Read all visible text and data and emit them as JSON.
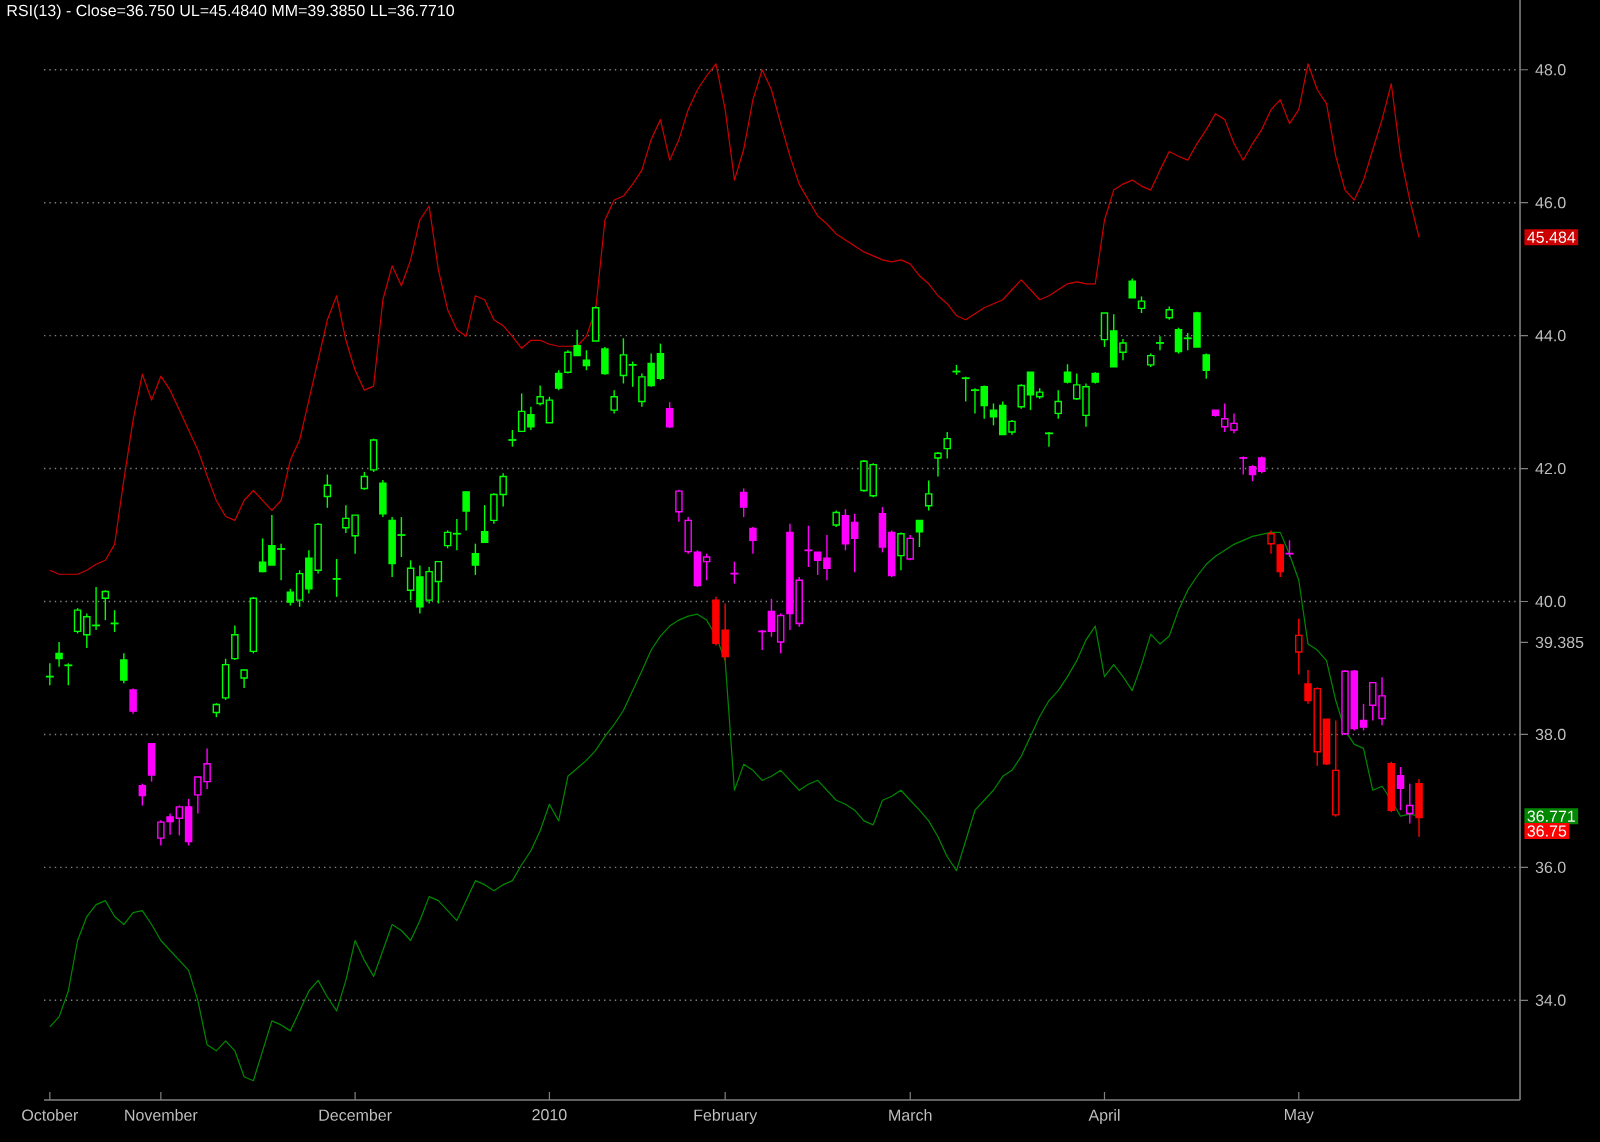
{
  "chart_data": {
    "type": "candlestick",
    "title": "RSI(13) - Close=36.750   UL=45.4840   MM=39.3850   LL=36.7710",
    "categories": [
      "October",
      null,
      null,
      null,
      null,
      null,
      null,
      null,
      null,
      null,
      null,
      null,
      "November",
      null,
      null,
      null,
      null,
      null,
      null,
      null,
      null,
      null,
      null,
      null,
      null,
      null,
      null,
      null,
      null,
      null,
      null,
      null,
      null,
      "December",
      null,
      null,
      null,
      null,
      null,
      null,
      null,
      null,
      null,
      null,
      null,
      null,
      null,
      null,
      null,
      null,
      null,
      null,
      null,
      null,
      "2010",
      null,
      null,
      null,
      null,
      null,
      null,
      null,
      null,
      null,
      null,
      null,
      null,
      null,
      null,
      null,
      null,
      null,
      null,
      "February",
      null,
      null,
      null,
      null,
      null,
      null,
      null,
      null,
      null,
      null,
      null,
      null,
      null,
      null,
      null,
      null,
      null,
      null,
      null,
      "March",
      null,
      null,
      null,
      null,
      null,
      null,
      null,
      null,
      null,
      null,
      null,
      null,
      null,
      null,
      null,
      null,
      null,
      null,
      null,
      null,
      "April",
      null,
      null,
      null,
      null,
      null,
      null,
      null,
      null,
      null,
      null,
      null,
      null,
      null,
      null,
      null,
      null,
      null,
      null,
      null,
      null,
      "May",
      null,
      null,
      null,
      null,
      null,
      null,
      null,
      null,
      null,
      null,
      null,
      null,
      null
    ],
    "ohlc": [
      [
        38.87,
        39.07,
        38.74,
        38.87
      ],
      [
        39.22,
        39.39,
        39.02,
        39.14
      ],
      [
        39.04,
        39.07,
        38.74,
        39.04
      ],
      [
        39.55,
        39.9,
        39.52,
        39.87
      ],
      [
        39.5,
        39.82,
        39.3,
        39.77
      ],
      [
        39.64,
        40.22,
        39.57,
        39.64
      ],
      [
        40.05,
        40.17,
        39.72,
        40.15
      ],
      [
        39.67,
        39.87,
        39.54,
        39.67
      ],
      [
        39.12,
        39.22,
        38.77,
        38.82
      ],
      [
        38.67,
        38.69,
        38.31,
        38.35
      ],
      [
        37.23,
        37.26,
        36.93,
        37.08
      ],
      [
        37.86,
        37.86,
        37.29,
        37.39
      ],
      [
        36.44,
        36.71,
        36.33,
        36.68
      ],
      [
        36.76,
        36.81,
        36.49,
        36.69
      ],
      [
        36.74,
        36.93,
        36.48,
        36.91
      ],
      [
        36.91,
        37.03,
        36.33,
        36.39
      ],
      [
        37.09,
        37.36,
        36.81,
        37.36
      ],
      [
        37.29,
        37.79,
        37.18,
        37.56
      ],
      [
        38.33,
        38.47,
        38.26,
        38.45
      ],
      [
        38.55,
        39.14,
        38.52,
        39.05
      ],
      [
        39.14,
        39.64,
        39.12,
        39.5
      ],
      [
        38.85,
        38.98,
        38.7,
        38.97
      ],
      [
        39.25,
        40.07,
        39.22,
        40.05
      ],
      [
        40.59,
        40.95,
        40.44,
        40.45
      ],
      [
        40.84,
        41.3,
        40.55,
        40.55
      ],
      [
        40.79,
        40.87,
        40.32,
        40.79
      ],
      [
        40.14,
        40.19,
        39.94,
        39.99
      ],
      [
        40.02,
        40.47,
        39.92,
        40.42
      ],
      [
        40.65,
        40.77,
        40.12,
        40.19
      ],
      [
        40.47,
        41.18,
        40.42,
        41.16
      ],
      [
        41.58,
        41.91,
        41.41,
        41.75
      ],
      [
        40.34,
        40.64,
        40.07,
        40.34
      ],
      [
        41.11,
        41.45,
        41.03,
        41.25
      ],
      [
        40.99,
        41.3,
        40.72,
        41.3
      ],
      [
        41.7,
        41.95,
        41.68,
        41.88
      ],
      [
        41.98,
        42.45,
        41.95,
        42.43
      ],
      [
        41.78,
        41.83,
        41.27,
        41.32
      ],
      [
        41.22,
        41.27,
        40.37,
        40.57
      ],
      [
        41.0,
        41.27,
        40.67,
        41.0
      ],
      [
        40.17,
        40.62,
        40.02,
        40.5
      ],
      [
        40.37,
        40.54,
        39.82,
        39.92
      ],
      [
        40.02,
        40.52,
        39.97,
        40.45
      ],
      [
        40.3,
        40.6,
        39.97,
        40.6
      ],
      [
        40.84,
        41.07,
        40.8,
        41.04
      ],
      [
        41.02,
        41.24,
        40.77,
        41.02
      ],
      [
        41.65,
        41.65,
        41.07,
        41.36
      ],
      [
        40.72,
        40.87,
        40.4,
        40.55
      ],
      [
        41.05,
        41.45,
        40.89,
        40.89
      ],
      [
        41.22,
        41.63,
        41.17,
        41.61
      ],
      [
        41.61,
        41.93,
        41.43,
        41.88
      ],
      [
        42.43,
        42.58,
        42.33,
        42.43
      ],
      [
        42.56,
        43.13,
        42.56,
        42.86
      ],
      [
        42.81,
        42.93,
        42.58,
        42.63
      ],
      [
        42.98,
        43.25,
        42.95,
        43.08
      ],
      [
        42.69,
        43.08,
        42.69,
        43.03
      ],
      [
        43.43,
        43.48,
        43.18,
        43.21
      ],
      [
        43.45,
        43.78,
        43.43,
        43.75
      ],
      [
        43.85,
        44.09,
        43.7,
        43.7
      ],
      [
        43.63,
        43.78,
        43.48,
        43.55
      ],
      [
        43.92,
        44.44,
        43.92,
        44.42
      ],
      [
        43.8,
        43.83,
        43.41,
        43.43
      ],
      [
        42.88,
        43.18,
        42.83,
        43.08
      ],
      [
        43.4,
        43.96,
        43.28,
        43.71
      ],
      [
        43.56,
        43.61,
        43.23,
        43.56
      ],
      [
        43.01,
        43.43,
        42.93,
        43.38
      ],
      [
        43.58,
        43.73,
        43.23,
        43.25
      ],
      [
        43.73,
        43.88,
        43.33,
        43.36
      ],
      [
        42.9,
        43.0,
        42.61,
        42.63
      ],
      [
        41.35,
        41.68,
        41.2,
        41.66
      ],
      [
        40.75,
        41.27,
        40.72,
        41.22
      ],
      [
        40.74,
        40.77,
        40.22,
        40.24
      ],
      [
        40.6,
        40.72,
        40.32,
        40.67
      ],
      [
        40.02,
        40.07,
        39.34,
        39.37
      ],
      [
        39.57,
        39.97,
        39.11,
        39.17
      ],
      [
        40.42,
        40.6,
        40.27,
        40.42
      ],
      [
        41.64,
        41.7,
        41.27,
        41.42
      ],
      [
        41.1,
        41.12,
        40.72,
        40.92
      ],
      [
        39.55,
        39.57,
        39.27,
        39.55
      ],
      [
        39.85,
        40.04,
        39.47,
        39.55
      ],
      [
        39.39,
        39.82,
        39.22,
        39.79
      ],
      [
        41.04,
        41.17,
        39.57,
        39.82
      ],
      [
        39.67,
        40.37,
        39.62,
        40.32
      ],
      [
        40.77,
        41.14,
        40.52,
        40.77
      ],
      [
        40.74,
        40.74,
        40.4,
        40.62
      ],
      [
        40.65,
        41.0,
        40.32,
        40.5
      ],
      [
        41.15,
        41.37,
        41.12,
        41.34
      ],
      [
        41.29,
        41.39,
        40.77,
        40.87
      ],
      [
        41.19,
        41.32,
        40.44,
        40.95
      ],
      [
        41.67,
        42.13,
        41.65,
        42.11
      ],
      [
        41.59,
        42.08,
        41.57,
        42.06
      ],
      [
        41.32,
        41.42,
        40.74,
        40.82
      ],
      [
        41.04,
        41.07,
        40.37,
        40.39
      ],
      [
        40.69,
        41.04,
        40.47,
        41.02
      ],
      [
        40.64,
        41.0,
        40.62,
        40.95
      ],
      [
        41.22,
        41.22,
        40.82,
        41.05
      ],
      [
        41.44,
        41.82,
        41.37,
        41.62
      ],
      [
        42.16,
        42.25,
        41.88,
        42.23
      ],
      [
        42.3,
        42.55,
        42.15,
        42.45
      ],
      [
        43.46,
        43.56,
        43.41,
        43.46
      ],
      [
        43.36,
        43.38,
        43.01,
        43.36
      ],
      [
        43.18,
        43.21,
        42.83,
        43.18
      ],
      [
        43.23,
        43.25,
        42.75,
        42.95
      ],
      [
        42.88,
        42.98,
        42.65,
        42.78
      ],
      [
        42.95,
        43.01,
        42.51,
        42.51
      ],
      [
        42.55,
        42.73,
        42.51,
        42.71
      ],
      [
        42.93,
        43.27,
        42.9,
        43.25
      ],
      [
        43.45,
        43.45,
        42.88,
        43.11
      ],
      [
        43.08,
        43.21,
        43.05,
        43.15
      ],
      [
        42.53,
        42.55,
        42.33,
        42.53
      ],
      [
        42.83,
        43.18,
        42.75,
        43.01
      ],
      [
        43.45,
        43.57,
        43.28,
        43.3
      ],
      [
        43.05,
        43.43,
        43.03,
        43.26
      ],
      [
        42.8,
        43.28,
        42.63,
        43.23
      ],
      [
        43.43,
        43.45,
        43.28,
        43.3
      ],
      [
        43.94,
        44.34,
        43.83,
        44.34
      ],
      [
        44.07,
        44.32,
        43.53,
        43.53
      ],
      [
        43.75,
        43.95,
        43.63,
        43.89
      ],
      [
        44.82,
        44.86,
        44.57,
        44.57
      ],
      [
        44.41,
        44.59,
        44.34,
        44.52
      ],
      [
        43.56,
        43.73,
        43.53,
        43.7
      ],
      [
        43.89,
        43.99,
        43.78,
        43.89
      ],
      [
        44.27,
        44.44,
        44.24,
        44.39
      ],
      [
        44.09,
        44.12,
        43.73,
        43.76
      ],
      [
        43.96,
        44.04,
        43.78,
        43.96
      ],
      [
        44.34,
        44.36,
        43.83,
        43.83
      ],
      [
        43.71,
        43.73,
        43.35,
        43.48
      ],
      [
        42.88,
        42.88,
        42.78,
        42.8
      ],
      [
        42.63,
        42.98,
        42.55,
        42.75
      ],
      [
        42.58,
        42.83,
        42.53,
        42.68
      ],
      [
        42.16,
        42.18,
        41.91,
        42.16
      ],
      [
        42.03,
        42.05,
        41.81,
        41.91
      ],
      [
        42.16,
        42.18,
        41.93,
        41.96
      ],
      [
        40.87,
        41.07,
        40.72,
        41.02
      ],
      [
        40.85,
        40.87,
        40.37,
        40.45
      ],
      [
        40.72,
        40.92,
        40.67,
        40.72
      ],
      [
        39.24,
        39.74,
        38.9,
        39.49
      ],
      [
        38.76,
        38.97,
        38.46,
        38.51
      ],
      [
        37.74,
        38.71,
        37.53,
        38.69
      ],
      [
        38.23,
        38.23,
        37.54,
        37.56
      ],
      [
        36.79,
        38.21,
        36.76,
        37.46
      ],
      [
        38.01,
        38.97,
        37.99,
        38.95
      ],
      [
        38.95,
        38.97,
        38.06,
        38.09
      ],
      [
        38.21,
        38.46,
        38.06,
        38.11
      ],
      [
        38.44,
        38.79,
        38.21,
        38.78
      ],
      [
        38.24,
        38.86,
        38.14,
        38.58
      ],
      [
        37.56,
        37.59,
        36.83,
        36.86
      ],
      [
        37.38,
        37.51,
        36.86,
        37.19
      ],
      [
        36.81,
        37.26,
        36.66,
        36.93
      ],
      [
        37.26,
        37.33,
        36.46,
        36.75
      ]
    ],
    "colors": [
      "#00ff00",
      "#00ff00",
      "#00ff00",
      "#00ff00",
      "#00ff00",
      "#00ff00",
      "#00ff00",
      "#00ff00",
      "#00ff00",
      "#ff00ff",
      "#ff00ff",
      "#ff00ff",
      "#ff00ff",
      "#ff00ff",
      "#ff00ff",
      "#ff00ff",
      "#ff00ff",
      "#ff00ff",
      "#00ff00",
      "#00ff00",
      "#00ff00",
      "#00ff00",
      "#00ff00",
      "#00ff00",
      "#00ff00",
      "#00ff00",
      "#00ff00",
      "#00ff00",
      "#00ff00",
      "#00ff00",
      "#00ff00",
      "#00ff00",
      "#00ff00",
      "#00ff00",
      "#00ff00",
      "#00ff00",
      "#00ff00",
      "#00ff00",
      "#00ff00",
      "#00ff00",
      "#00ff00",
      "#00ff00",
      "#00ff00",
      "#00ff00",
      "#00ff00",
      "#00ff00",
      "#00ff00",
      "#00ff00",
      "#00ff00",
      "#00ff00",
      "#00ff00",
      "#00ff00",
      "#00ff00",
      "#00ff00",
      "#00ff00",
      "#00ff00",
      "#00ff00",
      "#00ff00",
      "#00ff00",
      "#00ff00",
      "#00ff00",
      "#00ff00",
      "#00ff00",
      "#00ff00",
      "#00ff00",
      "#00ff00",
      "#00ff00",
      "#ff00ff",
      "#ff00ff",
      "#ff00ff",
      "#ff00ff",
      "#ff00ff",
      "#ff0000",
      "#ff0000",
      "#ff00ff",
      "#ff00ff",
      "#ff00ff",
      "#ff00ff",
      "#ff00ff",
      "#ff00ff",
      "#ff00ff",
      "#ff00ff",
      "#ff00ff",
      "#ff00ff",
      "#ff00ff",
      "#00ff00",
      "#ff00ff",
      "#ff00ff",
      "#00ff00",
      "#00ff00",
      "#ff00ff",
      "#ff00ff",
      "#00ff00",
      "#ff00ff",
      "#00ff00",
      "#00ff00",
      "#00ff00",
      "#00ff00",
      "#00ff00",
      "#00ff00",
      "#00ff00",
      "#00ff00",
      "#00ff00",
      "#00ff00",
      "#00ff00",
      "#00ff00",
      "#00ff00",
      "#00ff00",
      "#00ff00",
      "#00ff00",
      "#00ff00",
      "#00ff00",
      "#00ff00",
      "#00ff00",
      "#00ff00",
      "#00ff00",
      "#00ff00",
      "#00ff00",
      "#00ff00",
      "#00ff00",
      "#00ff00",
      "#00ff00",
      "#00ff00",
      "#00ff00",
      "#00ff00",
      "#00ff00",
      "#ff00ff",
      "#ff00ff",
      "#ff00ff",
      "#ff00ff",
      "#ff00ff",
      "#ff00ff",
      "#ff0000",
      "#ff0000",
      "#ff00ff",
      "#ff0000",
      "#ff0000",
      "#ff0000",
      "#ff0000",
      "#ff0000",
      "#ff00ff",
      "#ff00ff",
      "#ff00ff",
      "#ff00ff",
      "#ff00ff",
      "#ff0000",
      "#ff00ff",
      "#ff00ff",
      "#ff0000"
    ],
    "series": [
      {
        "type": "line",
        "color": "#cc0000",
        "values": [
          40.47,
          40.41,
          40.41,
          40.41,
          40.47,
          40.56,
          40.62,
          40.86,
          41.83,
          42.73,
          43.42,
          43.03,
          43.39,
          43.18,
          42.88,
          42.58,
          42.28,
          41.89,
          41.52,
          41.28,
          41.22,
          41.52,
          41.67,
          41.52,
          41.37,
          41.52,
          42.13,
          42.43,
          43.03,
          43.63,
          44.24,
          44.6,
          43.93,
          43.48,
          43.18,
          43.24,
          44.54,
          45.05,
          44.75,
          45.14,
          45.74,
          45.95,
          44.99,
          44.39,
          44.09,
          43.99,
          44.6,
          44.54,
          44.24,
          44.15,
          43.99,
          43.81,
          43.93,
          43.93,
          43.87,
          43.84,
          43.84,
          43.84,
          43.99,
          44.39,
          45.74,
          46.04,
          46.1,
          46.28,
          46.49,
          46.95,
          47.25,
          46.64,
          46.95,
          47.4,
          47.7,
          47.91,
          48.09,
          47.4,
          46.34,
          46.8,
          47.55,
          48.0,
          47.7,
          47.19,
          46.7,
          46.28,
          46.04,
          45.8,
          45.68,
          45.53,
          45.44,
          45.35,
          45.26,
          45.2,
          45.14,
          45.11,
          45.14,
          45.08,
          44.9,
          44.78,
          44.6,
          44.48,
          44.3,
          44.24,
          44.33,
          44.42,
          44.48,
          44.54,
          44.69,
          44.84,
          44.69,
          44.54,
          44.6,
          44.69,
          44.78,
          44.81,
          44.78,
          44.78,
          45.74,
          46.19,
          46.28,
          46.34,
          46.25,
          46.19,
          46.49,
          46.77,
          46.7,
          46.64,
          46.89,
          47.1,
          47.34,
          47.25,
          46.89,
          46.64,
          46.89,
          47.1,
          47.4,
          47.55,
          47.19,
          47.4,
          48.09,
          47.7,
          47.49,
          46.7,
          46.19,
          46.04,
          46.34,
          46.8,
          47.25,
          47.79,
          46.7,
          46.04,
          45.48
        ]
      },
      {
        "type": "line",
        "color": "#008800",
        "values": [
          33.6,
          33.75,
          34.14,
          34.9,
          35.26,
          35.44,
          35.5,
          35.26,
          35.14,
          35.32,
          35.35,
          35.14,
          34.9,
          34.75,
          34.6,
          34.45,
          34.0,
          33.33,
          33.24,
          33.39,
          33.24,
          32.85,
          32.79,
          33.24,
          33.69,
          33.63,
          33.54,
          33.84,
          34.14,
          34.3,
          34.05,
          33.84,
          34.3,
          34.9,
          34.6,
          34.36,
          34.75,
          35.14,
          35.05,
          34.9,
          35.2,
          35.56,
          35.5,
          35.35,
          35.2,
          35.5,
          35.8,
          35.74,
          35.65,
          35.74,
          35.8,
          36.04,
          36.25,
          36.55,
          36.95,
          36.7,
          37.37,
          37.49,
          37.61,
          37.76,
          37.97,
          38.15,
          38.36,
          38.66,
          38.96,
          39.27,
          39.48,
          39.63,
          39.72,
          39.78,
          39.81,
          39.72,
          39.48,
          39.11,
          37.16,
          37.55,
          37.46,
          37.31,
          37.37,
          37.46,
          37.31,
          37.16,
          37.25,
          37.31,
          37.16,
          37.01,
          36.95,
          36.86,
          36.7,
          36.64,
          37.01,
          37.07,
          37.16,
          37.01,
          36.86,
          36.7,
          36.46,
          36.16,
          35.95,
          36.4,
          36.86,
          37.01,
          37.16,
          37.37,
          37.46,
          37.67,
          37.97,
          38.27,
          38.51,
          38.66,
          38.87,
          39.11,
          39.42,
          39.63,
          38.87,
          39.05,
          38.87,
          38.66,
          39.05,
          39.51,
          39.36,
          39.48,
          39.87,
          40.17,
          40.38,
          40.56,
          40.68,
          40.77,
          40.86,
          40.92,
          40.98,
          41.01,
          41.04,
          41.04,
          40.71,
          40.32,
          39.36,
          39.27,
          39.11,
          38.51,
          38.06,
          37.85,
          37.79,
          37.16,
          37.22,
          37.01,
          36.77,
          36.8,
          36.77
        ]
      }
    ],
    "ylim": [
      32.5,
      49.05
    ],
    "yticks": [
      {
        "value": 34,
        "label": "34.0"
      },
      {
        "value": 36,
        "label": "36.0"
      },
      {
        "value": 38,
        "label": "38.0"
      },
      {
        "value": 39.385,
        "label": "39.385"
      },
      {
        "value": 40,
        "label": "40.0"
      },
      {
        "value": 42,
        "label": "42.0"
      },
      {
        "value": 44,
        "label": "44.0"
      },
      {
        "value": 46,
        "label": "46.0"
      },
      {
        "value": 48,
        "label": "48.0"
      }
    ],
    "grid": "y",
    "annotations": [
      "45.484",
      "36.771",
      "36.75"
    ]
  }
}
